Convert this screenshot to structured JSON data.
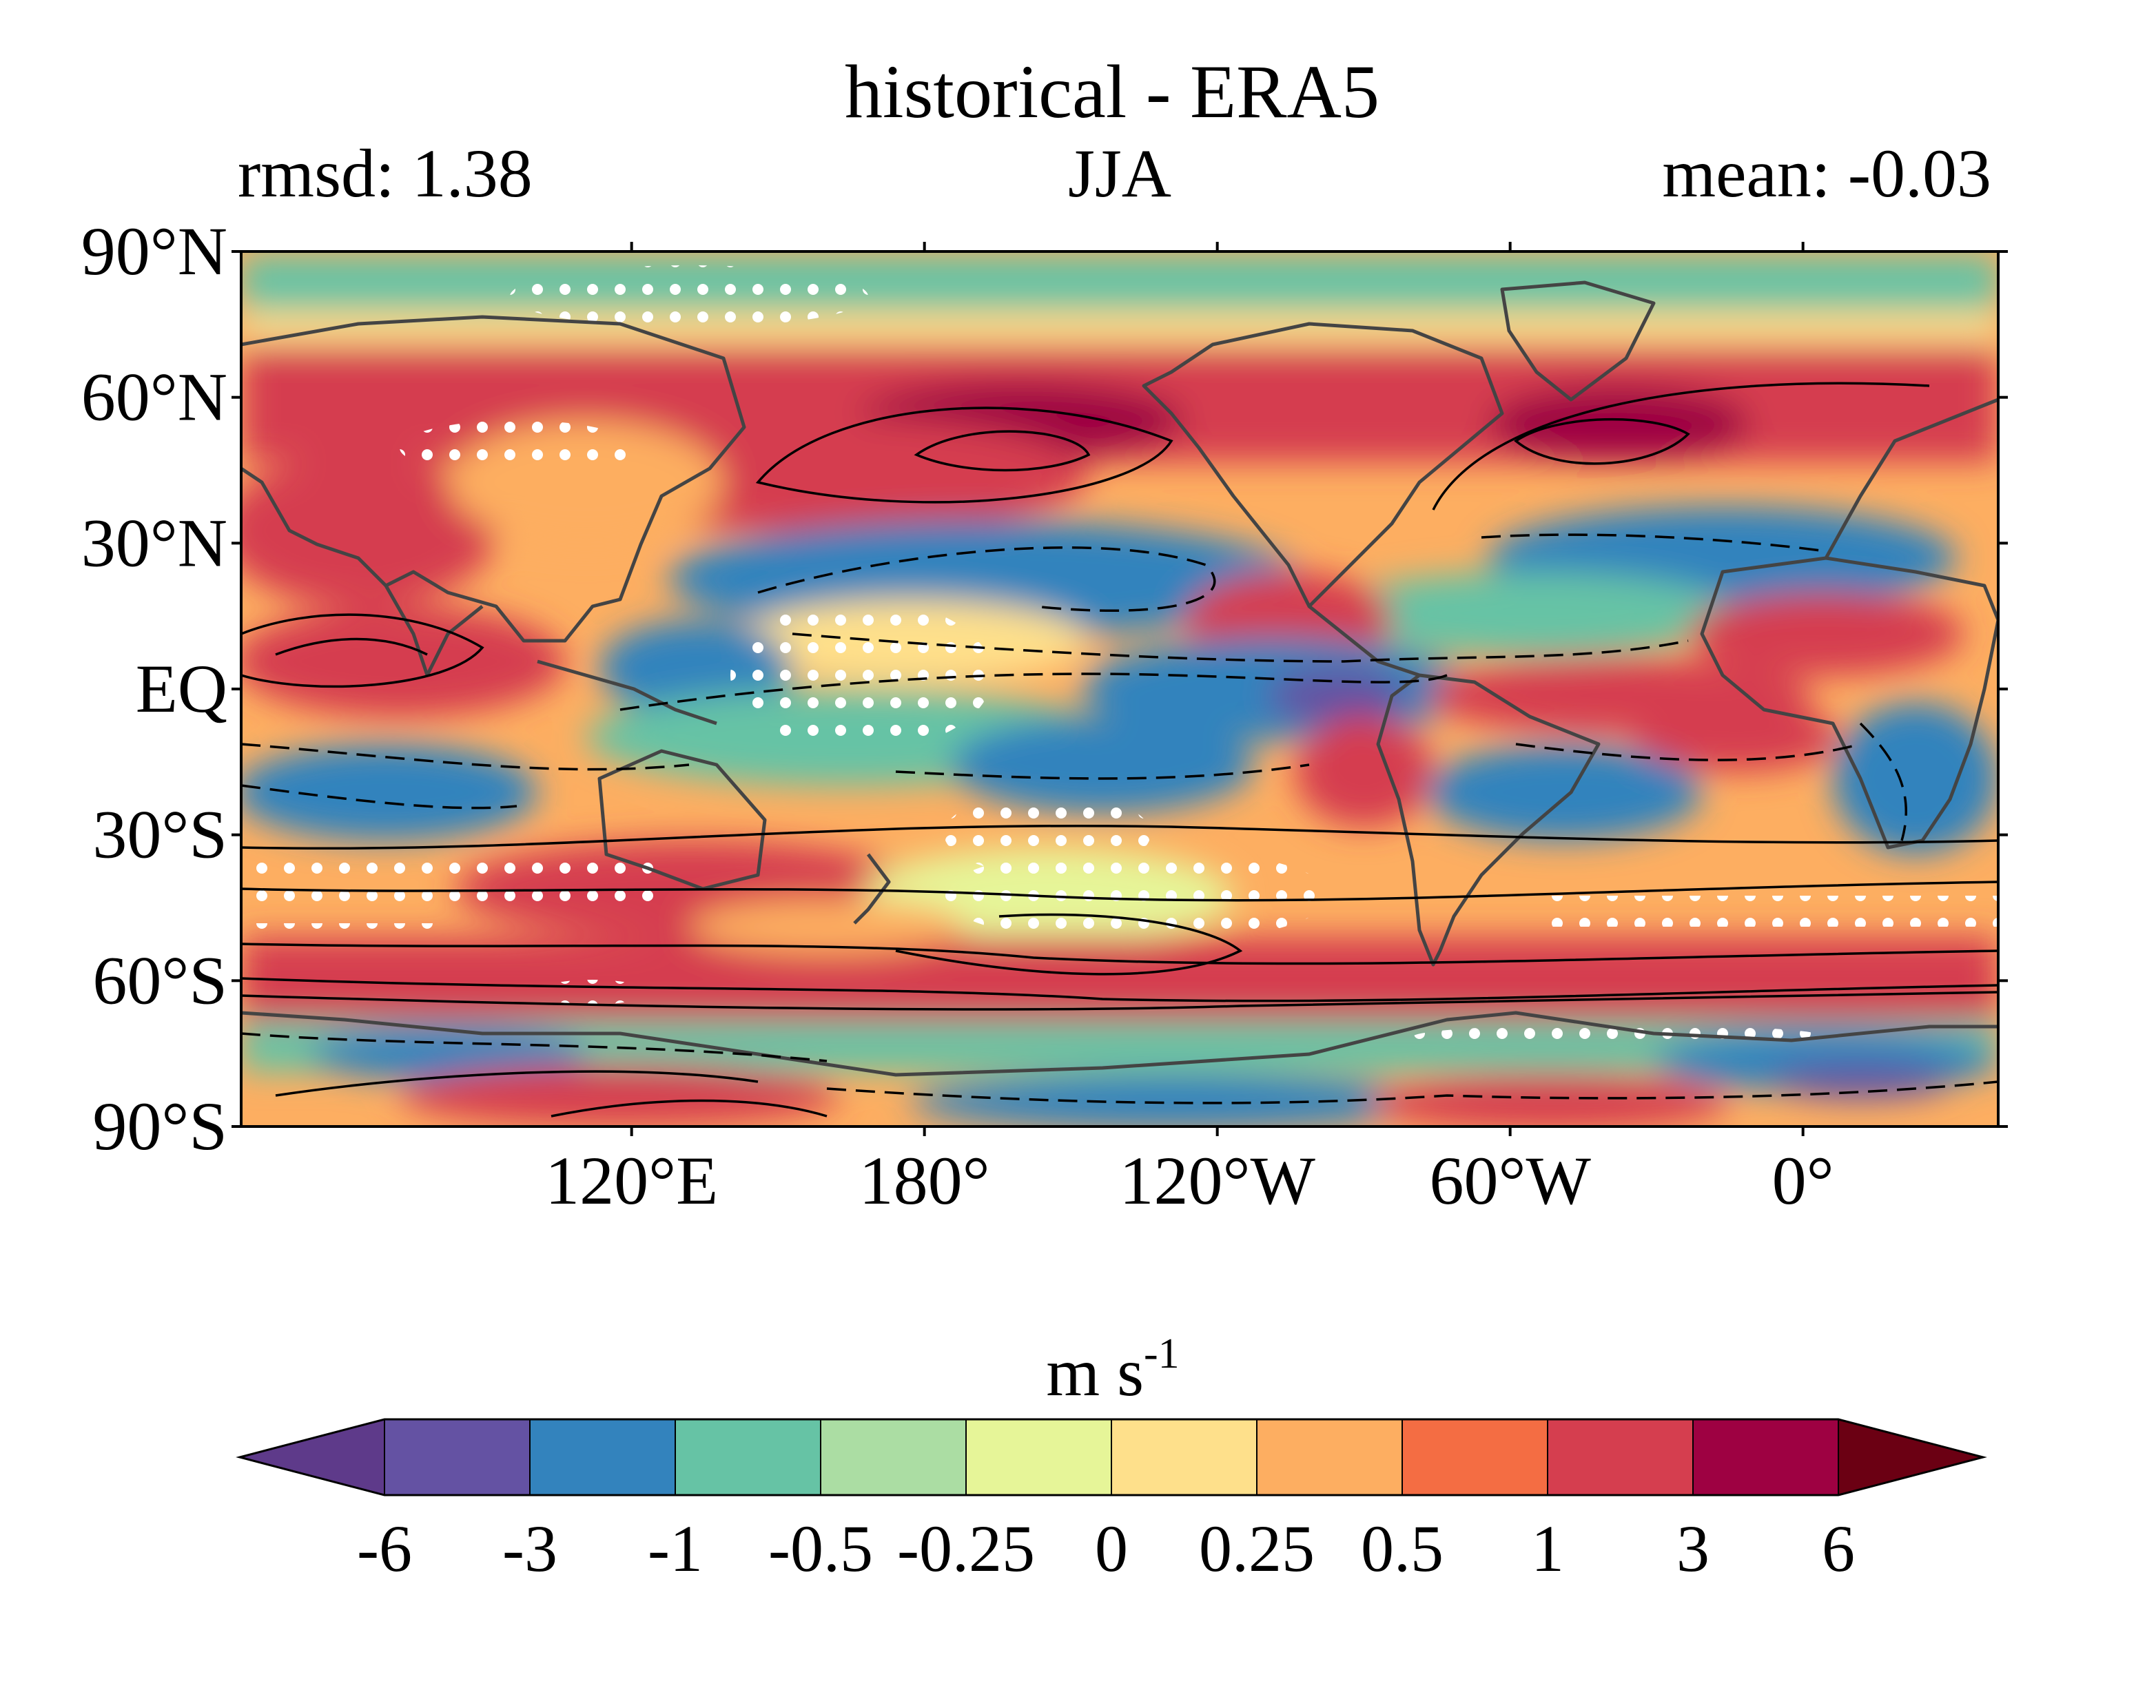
{
  "chart_data": {
    "type": "heatmap",
    "title": "historical - ERA5",
    "subtitle_left": "rmsd: 1.38",
    "subtitle_center": "JJA",
    "subtitle_right": "mean: -0.03",
    "ylabel": "",
    "xlabel": "",
    "x_ticks": [
      "120°E",
      "180°",
      "120°W",
      "60°W",
      "0°"
    ],
    "y_ticks": [
      "90°N",
      "60°N",
      "30°N",
      "EQ",
      "30°S",
      "60°S",
      "90°S"
    ],
    "colorbar": {
      "unit_base": "m s",
      "unit_exp": "-1",
      "levels": [
        "-6",
        "-3",
        "-1",
        "-0.5",
        "-0.25",
        "0",
        "0.25",
        "0.5",
        "1",
        "3",
        "6"
      ],
      "colors": [
        "#5e3a8a",
        "#6452a3",
        "#3383bd",
        "#66c3a5",
        "#abdda3",
        "#e6f598",
        "#fee08b",
        "#fdae61",
        "#f46d43",
        "#d53e4f",
        "#9e0142",
        "#6b0013"
      ],
      "extend": "both"
    },
    "map": {
      "projection": "equirectangular",
      "lon_range": [
        40,
        400
      ],
      "lat_range": [
        -90,
        90
      ],
      "stippling": "white dots mark non-significant differences",
      "contours": "black solid (positive) and dashed (negative) climatology"
    }
  }
}
